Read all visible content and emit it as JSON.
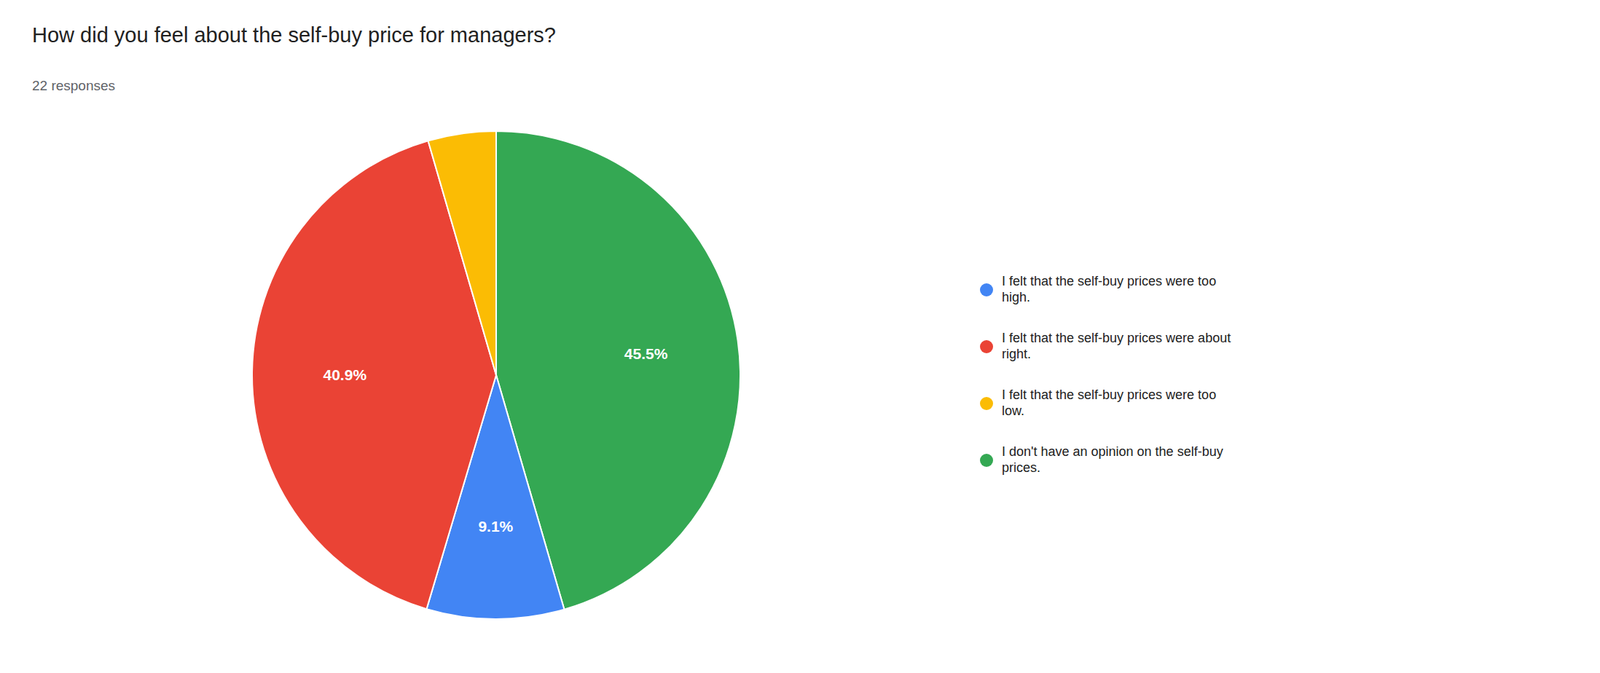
{
  "chart_data": {
    "type": "pie",
    "title": "How did you feel about the self-buy price for managers?",
    "subtitle": "22 responses",
    "values": [
      45.5,
      9.1,
      40.9,
      4.5
    ],
    "colors": [
      "#34A853",
      "#4285F4",
      "#EA4335",
      "#FBBC04"
    ],
    "data_labels": true,
    "value_labels": [
      "45.5%",
      "9.1%",
      "40.9%",
      null
    ],
    "legend": "right",
    "legend_entries": [
      {
        "label": "I felt that the self-buy prices were too\nhigh.",
        "color": "#4285F4"
      },
      {
        "label": "I felt that the self-buy prices were about\nright.",
        "color": "#EA4335"
      },
      {
        "label": "I felt that the self-buy prices were too\nlow.",
        "color": "#FBBC04"
      },
      {
        "label": "I don't have an opinion on the self-buy\nprices.",
        "color": "#34A853"
      }
    ]
  }
}
